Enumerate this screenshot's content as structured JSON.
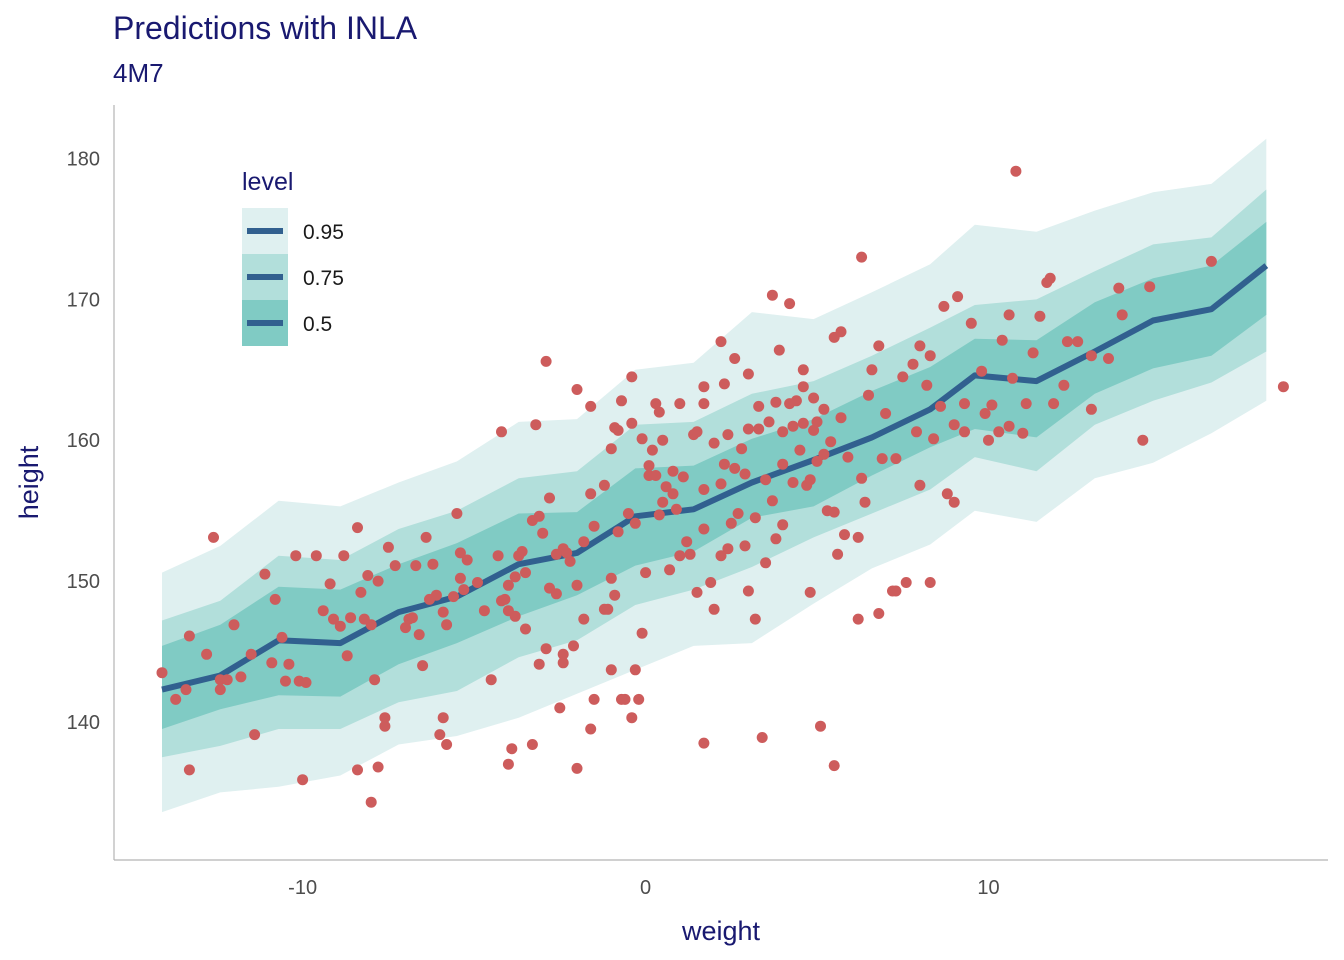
{
  "chart_data": {
    "type": "line",
    "title": "Predictions with INLA",
    "subtitle": "4M7",
    "xlabel": "weight",
    "ylabel": "height",
    "xlim": [
      -15.5,
      19.9
    ],
    "ylim": [
      130.2,
      183.8
    ],
    "x_ticks": [
      -10,
      0,
      10
    ],
    "y_ticks": [
      140,
      150,
      160,
      170,
      180
    ],
    "x_tick_labels": [
      "-10",
      "0",
      "10"
    ],
    "y_tick_labels": [
      "140",
      "150",
      "160",
      "170",
      "180"
    ],
    "grid": false,
    "legend": {
      "title": "level",
      "position": "top-left",
      "entries": [
        "0.95",
        "0.75",
        "0.5"
      ]
    },
    "colors": {
      "band_95": "#dff0f0",
      "band_75": "#b2dfdb",
      "band_50": "#80cbc4",
      "line": "#31608f",
      "points": "#cd5c5c",
      "text": "#191970"
    },
    "bands": [
      {
        "level": "0.95",
        "x": [
          -14.1,
          -12.4,
          -10.7,
          -8.9,
          -7.2,
          -5.5,
          -3.7,
          -2.0,
          -0.3,
          1.4,
          3.1,
          4.9,
          6.6,
          8.3,
          9.6,
          11.4,
          13.1,
          14.8,
          16.5,
          18.1
        ],
        "lower": [
          133.6,
          135.0,
          135.4,
          136.2,
          138.4,
          139.0,
          140.3,
          142.0,
          143.7,
          145.4,
          145.6,
          148.4,
          150.9,
          152.6,
          155.0,
          154.2,
          157.3,
          158.4,
          160.5,
          162.8
        ],
        "upper": [
          150.6,
          152.5,
          155.7,
          155.3,
          157.0,
          158.5,
          161.3,
          161.5,
          165.0,
          165.5,
          169.1,
          168.6,
          170.5,
          172.5,
          175.3,
          174.8,
          176.3,
          177.6,
          178.2,
          181.4
        ]
      },
      {
        "level": "0.75",
        "x": [
          -14.1,
          -12.4,
          -10.7,
          -8.9,
          -7.2,
          -5.5,
          -3.7,
          -2.0,
          -0.3,
          1.4,
          3.1,
          4.9,
          6.6,
          8.3,
          9.6,
          11.4,
          13.1,
          14.8,
          16.5,
          18.1
        ],
        "lower": [
          137.5,
          138.3,
          139.5,
          139.5,
          141.4,
          142.2,
          144.6,
          145.8,
          148.3,
          149.4,
          151.0,
          153.1,
          154.8,
          156.5,
          158.8,
          157.8,
          161.1,
          162.8,
          164.1,
          166.3
        ],
        "upper": [
          147.2,
          148.6,
          151.8,
          151.5,
          153.7,
          155.0,
          157.3,
          157.8,
          161.1,
          161.3,
          163.3,
          164.2,
          166.0,
          168.0,
          169.6,
          170.0,
          172.0,
          173.9,
          174.4,
          177.8
        ]
      },
      {
        "level": "0.5",
        "x": [
          -14.1,
          -12.4,
          -10.7,
          -8.9,
          -7.2,
          -5.5,
          -3.7,
          -2.0,
          -0.3,
          1.4,
          3.1,
          4.9,
          6.6,
          8.3,
          9.6,
          11.4,
          13.1,
          14.8,
          16.5,
          18.1
        ],
        "lower": [
          139.5,
          140.9,
          141.9,
          141.8,
          144.1,
          145.6,
          147.5,
          149.0,
          151.1,
          152.1,
          154.5,
          155.3,
          157.5,
          159.5,
          160.8,
          160.2,
          163.3,
          165.1,
          166.0,
          168.9
        ],
        "upper": [
          145.4,
          146.9,
          149.6,
          149.4,
          151.2,
          152.7,
          154.8,
          154.9,
          158.0,
          158.2,
          160.1,
          161.5,
          163.5,
          165.2,
          167.2,
          167.1,
          169.8,
          171.5,
          172.4,
          175.5
        ]
      }
    ],
    "series": [
      {
        "x": [
          -14.1,
          -12.4,
          -10.7,
          -8.9,
          -7.2,
          -5.5,
          -3.7,
          -2.0,
          -0.3,
          1.4,
          3.1,
          4.9,
          6.6,
          8.3,
          9.6,
          11.4,
          13.1,
          14.8,
          16.5,
          18.1
        ],
        "y": [
          142.3,
          143.3,
          145.8,
          145.6,
          147.8,
          148.9,
          151.2,
          152.0,
          154.6,
          155.1,
          157.0,
          158.6,
          160.2,
          162.2,
          164.6,
          164.2,
          166.3,
          168.5,
          169.3,
          172.4
        ]
      }
    ],
    "points": [
      [
        -14.1,
        143.5
      ],
      [
        -13.7,
        141.6
      ],
      [
        -13.4,
        142.3
      ],
      [
        -13.3,
        146.1
      ],
      [
        -13.3,
        136.6
      ],
      [
        -12.4,
        143.0
      ],
      [
        -12.4,
        142.3
      ],
      [
        -12.2,
        143.0
      ],
      [
        -12.6,
        153.1
      ],
      [
        -11.5,
        144.8
      ],
      [
        -11.4,
        139.1
      ],
      [
        -11.1,
        150.5
      ],
      [
        -10.6,
        146.0
      ],
      [
        -10.9,
        144.2
      ],
      [
        -10.5,
        142.9
      ],
      [
        -10.4,
        144.1
      ],
      [
        -10.1,
        142.9
      ],
      [
        -10.2,
        151.8
      ],
      [
        -9.4,
        147.9
      ],
      [
        -9.6,
        151.8
      ],
      [
        -9.1,
        147.3
      ],
      [
        -8.8,
        151.8
      ],
      [
        -8.9,
        146.8
      ],
      [
        -8.6,
        147.4
      ],
      [
        -8.3,
        149.2
      ],
      [
        -8.1,
        150.4
      ],
      [
        -8.0,
        146.9
      ],
      [
        -8.4,
        153.8
      ],
      [
        -8.2,
        147.3
      ],
      [
        -7.9,
        143.0
      ],
      [
        -7.5,
        152.4
      ],
      [
        -7.6,
        139.7
      ],
      [
        -7.6,
        140.3
      ],
      [
        -7.3,
        151.1
      ],
      [
        -6.9,
        147.3
      ],
      [
        -6.8,
        147.4
      ],
      [
        -6.6,
        146.2
      ],
      [
        -6.5,
        144.0
      ],
      [
        -6.4,
        153.1
      ],
      [
        -6.1,
        149.0
      ],
      [
        -6.2,
        151.2
      ],
      [
        -5.9,
        140.3
      ],
      [
        -5.8,
        146.9
      ],
      [
        -5.6,
        148.9
      ],
      [
        -5.3,
        149.4
      ],
      [
        -5.4,
        152.0
      ],
      [
        -5.5,
        154.8
      ],
      [
        -4.9,
        149.9
      ],
      [
        -4.7,
        147.9
      ],
      [
        -4.5,
        143.0
      ],
      [
        -4.3,
        151.8
      ],
      [
        -4.2,
        148.6
      ],
      [
        -4.0,
        149.7
      ],
      [
        -4.0,
        147.9
      ],
      [
        -3.8,
        150.3
      ],
      [
        -3.5,
        146.6
      ],
      [
        -3.3,
        138.4
      ],
      [
        -3.1,
        144.1
      ],
      [
        -2.8,
        155.9
      ],
      [
        -2.4,
        144.2
      ],
      [
        -2.5,
        141.0
      ],
      [
        -2.4,
        152.3
      ],
      [
        -2.3,
        152.0
      ],
      [
        -2.2,
        151.4
      ],
      [
        -2.0,
        149.7
      ],
      [
        -1.6,
        156.2
      ],
      [
        -1.5,
        153.9
      ],
      [
        -1.2,
        148.0
      ],
      [
        -1.1,
        148.0
      ],
      [
        -0.8,
        160.7
      ],
      [
        -0.5,
        154.8
      ],
      [
        -0.3,
        143.7
      ],
      [
        -0.1,
        146.3
      ],
      [
        0.1,
        157.5
      ],
      [
        0.3,
        157.5
      ],
      [
        0.5,
        155.6
      ],
      [
        0.4,
        162.0
      ],
      [
        0.6,
        156.7
      ],
      [
        0.8,
        156.2
      ],
      [
        1.0,
        151.8
      ],
      [
        1.3,
        151.9
      ],
      [
        1.5,
        149.2
      ],
      [
        1.7,
        153.7
      ],
      [
        1.9,
        149.9
      ],
      [
        2.0,
        148.0
      ],
      [
        2.4,
        152.3
      ],
      [
        2.7,
        154.8
      ],
      [
        2.9,
        152.5
      ],
      [
        3.2,
        154.5
      ],
      [
        3.0,
        149.3
      ],
      [
        3.5,
        151.3
      ],
      [
        3.8,
        153.0
      ],
      [
        4.0,
        154.0
      ],
      [
        4.3,
        157.0
      ],
      [
        4.7,
        156.8
      ],
      [
        5.0,
        158.5
      ],
      [
        5.3,
        155.0
      ],
      [
        5.5,
        154.9
      ],
      [
        5.8,
        153.3
      ],
      [
        5.6,
        151.9
      ],
      [
        6.2,
        153.1
      ],
      [
        6.3,
        157.3
      ],
      [
        -10.0,
        135.9
      ],
      [
        -8.0,
        134.3
      ],
      [
        -6.0,
        139.1
      ],
      [
        -4.0,
        137.0
      ],
      [
        -2.0,
        136.7
      ],
      [
        -0.2,
        141.6
      ],
      [
        -0.6,
        141.6
      ],
      [
        -0.7,
        141.6
      ],
      [
        1.7,
        138.5
      ],
      [
        3.4,
        138.9
      ],
      [
        5.1,
        139.7
      ],
      [
        5.5,
        136.9
      ],
      [
        6.2,
        147.3
      ],
      [
        6.8,
        147.7
      ],
      [
        7.2,
        149.3
      ],
      [
        7.3,
        149.3
      ],
      [
        7.6,
        149.9
      ],
      [
        8.3,
        149.9
      ],
      [
        -8.4,
        136.6
      ],
      [
        -7.8,
        136.8
      ],
      [
        -5.8,
        138.4
      ],
      [
        -3.9,
        138.1
      ],
      [
        -1.6,
        139.5
      ],
      [
        -0.4,
        140.3
      ],
      [
        -1.0,
        143.7
      ],
      [
        -1.5,
        141.6
      ],
      [
        3.2,
        147.3
      ],
      [
        4.8,
        149.2
      ],
      [
        -6.3,
        148.7
      ],
      [
        -5.4,
        150.2
      ],
      [
        -3.6,
        152.1
      ],
      [
        -3.5,
        150.6
      ],
      [
        -2.4,
        144.8
      ],
      [
        -2.1,
        145.4
      ],
      [
        -2.9,
        145.2
      ],
      [
        -3.3,
        154.3
      ],
      [
        -3.1,
        154.6
      ],
      [
        -3.0,
        153.4
      ],
      [
        -1.2,
        156.8
      ],
      [
        -1.0,
        159.4
      ],
      [
        -0.9,
        160.9
      ],
      [
        -0.7,
        162.8
      ],
      [
        -0.4,
        161.2
      ],
      [
        0.1,
        158.2
      ],
      [
        0.2,
        159.3
      ],
      [
        0.5,
        160.0
      ],
      [
        0.8,
        157.8
      ],
      [
        1.1,
        157.4
      ],
      [
        1.4,
        160.4
      ],
      [
        1.5,
        160.6
      ],
      [
        1.7,
        162.6
      ],
      [
        2.0,
        159.8
      ],
      [
        2.3,
        158.3
      ],
      [
        2.4,
        160.4
      ],
      [
        2.6,
        158.0
      ],
      [
        2.8,
        159.4
      ],
      [
        3.0,
        160.8
      ],
      [
        3.3,
        160.8
      ],
      [
        3.6,
        161.3
      ],
      [
        3.8,
        162.7
      ],
      [
        4.0,
        160.6
      ],
      [
        4.3,
        161.0
      ],
      [
        4.4,
        162.8
      ],
      [
        4.6,
        161.2
      ],
      [
        4.9,
        160.7
      ],
      [
        5.2,
        159.0
      ],
      [
        5.4,
        159.9
      ],
      [
        5.7,
        161.6
      ],
      [
        -11.8,
        143.2
      ],
      [
        -9.9,
        142.8
      ],
      [
        -8.7,
        144.7
      ],
      [
        -7.0,
        146.7
      ],
      [
        -5.9,
        147.8
      ],
      [
        -4.1,
        148.7
      ],
      [
        -3.7,
        151.8
      ],
      [
        -2.8,
        149.5
      ],
      [
        -2.6,
        151.9
      ],
      [
        -1.8,
        152.8
      ],
      [
        -0.8,
        153.5
      ],
      [
        -0.3,
        154.1
      ],
      [
        0.4,
        154.7
      ],
      [
        0.9,
        155.1
      ],
      [
        1.7,
        156.5
      ],
      [
        2.2,
        156.9
      ],
      [
        2.9,
        157.6
      ],
      [
        3.5,
        157.2
      ],
      [
        4.0,
        158.3
      ],
      [
        4.5,
        159.3
      ],
      [
        -4.2,
        160.6
      ],
      [
        -3.2,
        161.1
      ],
      [
        -1.6,
        162.4
      ],
      [
        -0.4,
        164.5
      ],
      [
        0.3,
        162.6
      ],
      [
        1.0,
        162.6
      ],
      [
        2.2,
        167.0
      ],
      [
        2.6,
        165.8
      ],
      [
        3.0,
        164.7
      ],
      [
        3.3,
        162.4
      ],
      [
        3.9,
        166.4
      ],
      [
        4.6,
        165.0
      ],
      [
        -2.9,
        165.6
      ],
      [
        -2.0,
        163.6
      ],
      [
        -0.1,
        160.1
      ],
      [
        1.7,
        163.8
      ],
      [
        2.3,
        164.0
      ],
      [
        3.7,
        170.3
      ],
      [
        4.2,
        169.7
      ],
      [
        5.5,
        167.3
      ],
      [
        5.7,
        167.7
      ],
      [
        6.3,
        173.0
      ],
      [
        6.5,
        163.2
      ],
      [
        7.0,
        161.9
      ],
      [
        7.5,
        164.5
      ],
      [
        8.2,
        163.9
      ],
      [
        8.7,
        169.5
      ],
      [
        9.1,
        170.2
      ],
      [
        9.5,
        168.3
      ],
      [
        10.4,
        167.1
      ],
      [
        10.6,
        168.9
      ],
      [
        10.7,
        164.4
      ],
      [
        11.1,
        162.6
      ],
      [
        11.5,
        168.8
      ],
      [
        11.7,
        171.2
      ],
      [
        11.8,
        171.5
      ],
      [
        11.9,
        162.6
      ],
      [
        12.3,
        167.0
      ],
      [
        12.6,
        167.0
      ],
      [
        13.0,
        166.0
      ],
      [
        13.5,
        165.8
      ],
      [
        13.9,
        168.9
      ],
      [
        14.5,
        160.0
      ],
      [
        14.7,
        170.9
      ],
      [
        13.8,
        170.8
      ],
      [
        16.5,
        172.7
      ],
      [
        18.6,
        163.8
      ],
      [
        10.8,
        179.1
      ],
      [
        6.6,
        165.0
      ],
      [
        6.8,
        166.7
      ],
      [
        7.8,
        165.4
      ],
      [
        8.0,
        166.7
      ],
      [
        8.3,
        166.0
      ],
      [
        8.6,
        162.4
      ],
      [
        9.3,
        160.6
      ],
      [
        9.8,
        164.9
      ],
      [
        10.0,
        160.0
      ],
      [
        10.3,
        160.6
      ],
      [
        10.6,
        161.0
      ],
      [
        11.0,
        160.5
      ],
      [
        8.0,
        156.8
      ],
      [
        8.8,
        156.2
      ],
      [
        9.0,
        155.6
      ],
      [
        6.4,
        155.6
      ],
      [
        6.9,
        158.7
      ],
      [
        7.3,
        158.7
      ],
      [
        8.4,
        160.1
      ],
      [
        9.3,
        162.6
      ],
      [
        10.1,
        162.5
      ],
      [
        11.3,
        166.2
      ],
      [
        12.2,
        163.9
      ],
      [
        13.0,
        162.2
      ],
      [
        9.0,
        161.1
      ],
      [
        9.9,
        161.9
      ],
      [
        7.9,
        160.6
      ],
      [
        5.2,
        162.2
      ],
      [
        4.9,
        163.0
      ],
      [
        4.6,
        163.8
      ],
      [
        4.2,
        162.6
      ],
      [
        5.0,
        161.3
      ],
      [
        -3.8,
        147.5
      ],
      [
        -2.6,
        149.1
      ],
      [
        -1.0,
        150.2
      ],
      [
        0.7,
        150.8
      ],
      [
        2.2,
        151.8
      ],
      [
        -5.2,
        151.5
      ],
      [
        -6.7,
        151.1
      ],
      [
        -7.8,
        150.0
      ],
      [
        -9.2,
        149.8
      ],
      [
        -10.8,
        148.7
      ],
      [
        -12.0,
        146.9
      ],
      [
        -12.8,
        144.8
      ],
      [
        -1.8,
        147.3
      ],
      [
        -0.9,
        149.0
      ],
      [
        0.0,
        150.6
      ],
      [
        1.2,
        152.8
      ],
      [
        2.5,
        154.1
      ],
      [
        3.7,
        155.7
      ],
      [
        4.8,
        157.2
      ],
      [
        5.9,
        158.8
      ]
    ]
  }
}
